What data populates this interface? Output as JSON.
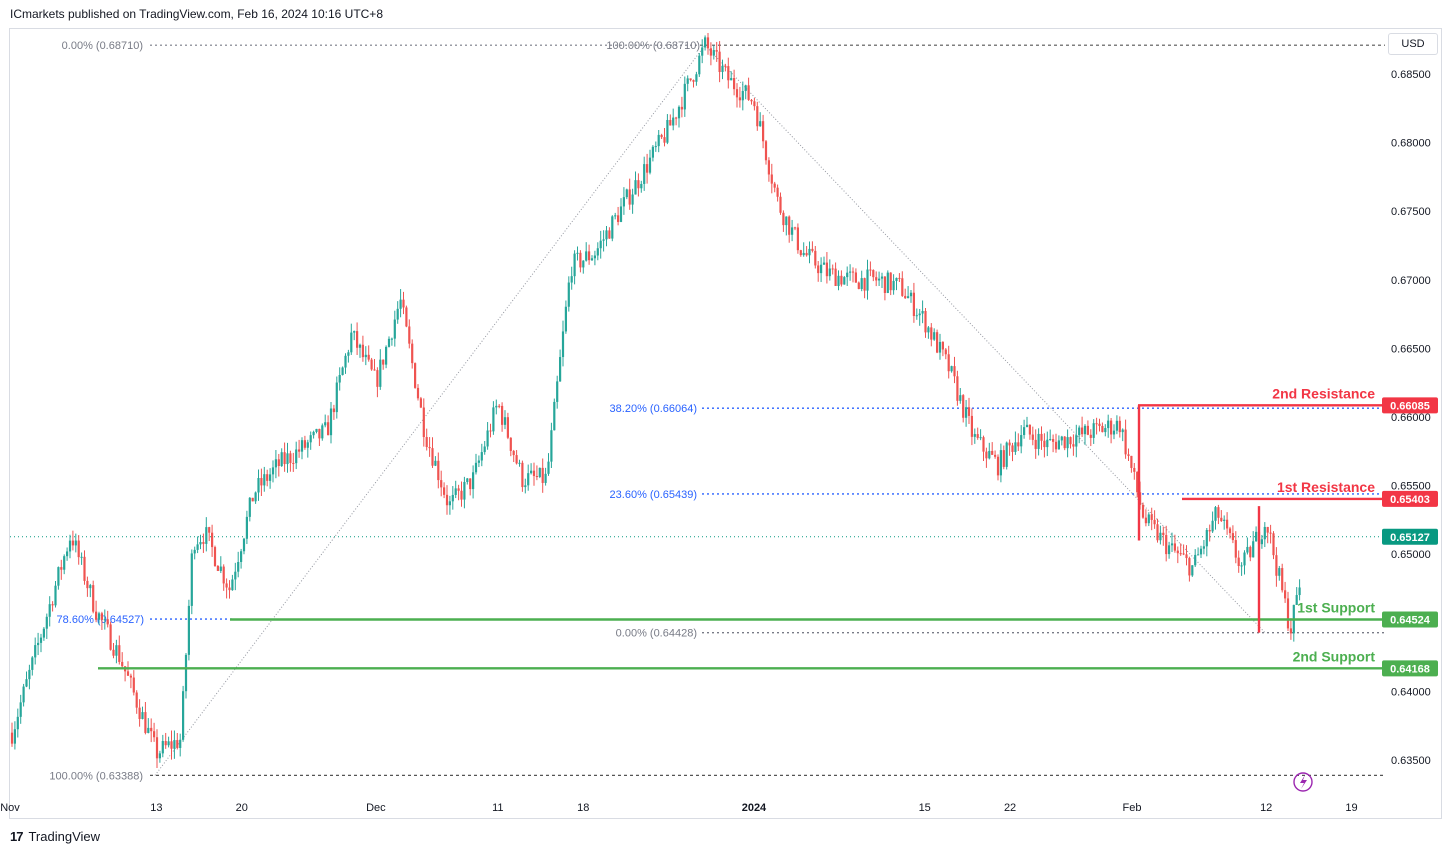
{
  "header": {
    "publisher": "ICmarkets published on TradingView.com, Feb 16, 2024 10:16 UTC+8"
  },
  "footer": {
    "brand": "TradingView",
    "logo": "17"
  },
  "price_axis": {
    "currency": "USD"
  },
  "colors": {
    "up": "#26a69a",
    "down": "#ef5350",
    "resistance": "#f23645",
    "support": "#4caf50",
    "last": "#089981",
    "fib": "#2962ff",
    "fib_gray": "#787b86"
  },
  "icons": {
    "replay": "lightning-icon"
  },
  "chart_data": {
    "type": "candlestick",
    "symbol_quote": "USD",
    "x_ticks": [
      "Nov",
      "13",
      "20",
      "Dec",
      "11",
      "18",
      "2024",
      "15",
      "22",
      "Feb",
      "12",
      "19"
    ],
    "y_ticks": [
      "0.68500",
      "0.68000",
      "0.67500",
      "0.67000",
      "0.66500",
      "0.66000",
      "0.65500",
      "0.65000",
      "0.64000",
      "0.63500"
    ],
    "ylim": [
      0.6321,
      0.6888
    ],
    "path": [
      [
        "2023-11-01",
        0.6365
      ],
      [
        "2023-11-06",
        0.6515
      ],
      [
        "2023-11-08",
        0.646
      ],
      [
        "2023-11-10",
        0.6425
      ],
      [
        "2023-11-13",
        0.6355
      ],
      [
        "2023-11-15",
        0.6365
      ],
      [
        "2023-11-16",
        0.651
      ],
      [
        "2023-11-17",
        0.6515
      ],
      [
        "2023-11-19",
        0.6475
      ],
      [
        "2023-11-21",
        0.6545
      ],
      [
        "2023-11-23",
        0.6565
      ],
      [
        "2023-11-27",
        0.659
      ],
      [
        "2023-11-29",
        0.666
      ],
      [
        "2023-12-01",
        0.6625
      ],
      [
        "2023-12-03",
        0.6685
      ],
      [
        "2023-12-05",
        0.659
      ],
      [
        "2023-12-07",
        0.6535
      ],
      [
        "2023-12-09",
        0.6555
      ],
      [
        "2023-12-11",
        0.661
      ],
      [
        "2023-12-13",
        0.6555
      ],
      [
        "2023-12-15",
        0.6555
      ],
      [
        "2023-12-17",
        0.671
      ],
      [
        "2023-12-19",
        0.672
      ],
      [
        "2023-12-21",
        0.675
      ],
      [
        "2023-12-23",
        0.678
      ],
      [
        "2023-12-25",
        0.681
      ],
      [
        "2023-12-27",
        0.685
      ],
      [
        "2023-12-28",
        0.6871
      ],
      [
        "2023-12-30",
        0.6845
      ],
      [
        "2024-01-01",
        0.683
      ],
      [
        "2024-01-03",
        0.6755
      ],
      [
        "2024-01-05",
        0.672
      ],
      [
        "2024-01-07",
        0.6705
      ],
      [
        "2024-01-09",
        0.67
      ],
      [
        "2024-01-11",
        0.67
      ],
      [
        "2024-01-13",
        0.6695
      ],
      [
        "2024-01-15",
        0.667
      ],
      [
        "2024-01-17",
        0.6635
      ],
      [
        "2024-01-19",
        0.6585
      ],
      [
        "2024-01-21",
        0.6565
      ],
      [
        "2024-01-23",
        0.659
      ],
      [
        "2024-01-25",
        0.658
      ],
      [
        "2024-01-27",
        0.6585
      ],
      [
        "2024-01-29",
        0.659
      ],
      [
        "2024-01-31",
        0.6595
      ],
      [
        "2024-02-02",
        0.6525
      ],
      [
        "2024-02-04",
        0.6505
      ],
      [
        "2024-02-06",
        0.649
      ],
      [
        "2024-02-08",
        0.653
      ],
      [
        "2024-02-10",
        0.649
      ],
      [
        "2024-02-12",
        0.6525
      ],
      [
        "2024-02-14",
        0.6445
      ],
      [
        "2024-02-15",
        0.649
      ],
      [
        "2024-02-16",
        0.6512
      ]
    ],
    "last_price": "0.65127",
    "levels": [
      {
        "label": "2nd Resistance",
        "value": "0.66085",
        "kind": "resistance"
      },
      {
        "label": "1st Resistance",
        "value": "0.65403",
        "kind": "resistance"
      },
      {
        "label": "1st Support",
        "value": "0.64524",
        "kind": "support"
      },
      {
        "label": "2nd Support",
        "value": "0.64168",
        "kind": "support"
      }
    ],
    "fib_upper": [
      {
        "label": "0.00% (0.68710)"
      },
      {
        "label": "100.00% (0.68710)"
      },
      {
        "label": "78.60% (0.64527)"
      },
      {
        "label": "100.00% (0.63388)"
      }
    ],
    "fib_lower": [
      {
        "label": "38.20% (0.66064)"
      },
      {
        "label": "23.60% (0.65439)"
      },
      {
        "label": "0.00% (0.64428)"
      }
    ]
  }
}
